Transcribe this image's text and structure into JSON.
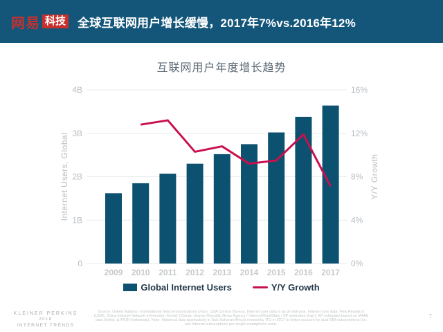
{
  "header": {
    "brand": "网易",
    "brand_badge": "科技",
    "title": "全球互联网用户增长缓慢，2017年7%vs.2016年12%"
  },
  "chart_data": {
    "type": "bar",
    "title": "互联网用户年度增长趋势",
    "categories": [
      "2009",
      "2010",
      "2011",
      "2012",
      "2013",
      "2014",
      "2015",
      "2016",
      "2017"
    ],
    "series": [
      {
        "name": "Global Internet Users",
        "type": "bar",
        "axis": "left",
        "unit": "B",
        "color": "#0c5170",
        "values": [
          1.62,
          1.85,
          2.07,
          2.3,
          2.52,
          2.75,
          3.02,
          3.38,
          3.64
        ]
      },
      {
        "name": "Y/Y Growth",
        "type": "line",
        "axis": "right",
        "unit": "%",
        "color": "#c8114e",
        "values": [
          null,
          12.8,
          13.2,
          10.3,
          10.8,
          9.2,
          9.5,
          11.9,
          7.1
        ]
      }
    ],
    "left_axis": {
      "label": "Internet Users, Global",
      "ticks": [
        "0",
        "1B",
        "2B",
        "3B",
        "4B"
      ],
      "range": [
        0,
        4
      ]
    },
    "right_axis": {
      "label": "Y/Y Growth",
      "ticks": [
        "0%",
        "4%",
        "8%",
        "12%",
        "16%"
      ],
      "range": [
        0,
        16
      ]
    },
    "grid": true,
    "legend_position": "bottom"
  },
  "footer": {
    "brand_lines": [
      "KLEINER PERKINS",
      "2018",
      "INTERNET TRENDS"
    ],
    "source": "Source: United Nations / International Telecommunications Union, USA Census Bureau. Internet user data is as of mid-year. Internet user data: Pew Research (USA), China Internet Network Information Center (China), Islamic Republic News Agency / InternetWorldStats / KP estimates (Iran), KP estimates based on IAMAI data (India), & APJII (Indonesia). Note: Historical data (particularly in Sub-Saharan Africa) revised by ITU in 2017 to better account for dual-SIM subscriptions (i.e. two Internet subscriptions per single smartphone user).",
    "page_number": "7"
  },
  "colors": {
    "header_bg": "#14567a",
    "logo_red": "#c8302c",
    "bar": "#0c5170",
    "line": "#c8114e"
  }
}
